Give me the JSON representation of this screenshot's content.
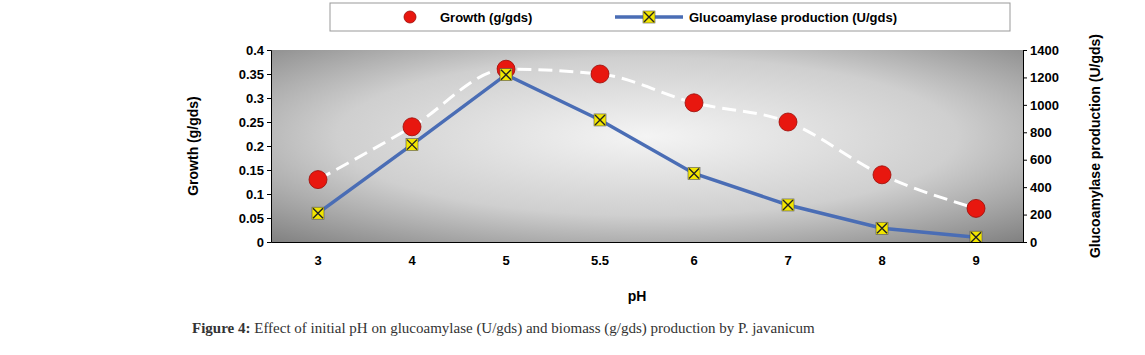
{
  "chart_data": {
    "type": "line",
    "caption": "Figure 4: Effect of initial pH on glucoamylase (U/gds) and biomass (g/gds) production by P. javanicum",
    "xlabel": "pH",
    "ylabel": "Growth (g/gds)",
    "y2label": "Glucoamylase production (U/gds)",
    "categories": [
      "3",
      "4",
      "5",
      "5.5",
      "6",
      "7",
      "8",
      "9"
    ],
    "series": [
      {
        "name": "Growth (g/gds)",
        "color": "#e8170f",
        "marker": "circle",
        "line_style": "dashed",
        "values": [
          0.13,
          0.24,
          0.36,
          0.35,
          0.29,
          0.25,
          0.14,
          0.07
        ]
      },
      {
        "name": "Glucoamylase production (U/gds)",
        "color": "#4a6db5",
        "marker": "x",
        "line_style": "solid",
        "axis": "y2",
        "values": [
          210,
          710,
          1220,
          890,
          500,
          270,
          100,
          35
        ]
      }
    ],
    "ylim": [
      0,
      0.4
    ],
    "yticks": [
      0,
      0.05,
      0.1,
      0.15,
      0.2,
      0.25,
      0.3,
      0.35,
      0.4
    ],
    "y2lim": [
      0,
      1400
    ],
    "y2ticks": [
      0,
      200,
      400,
      600,
      800,
      1000,
      1200,
      1400
    ],
    "legend": "top",
    "grid": false
  }
}
